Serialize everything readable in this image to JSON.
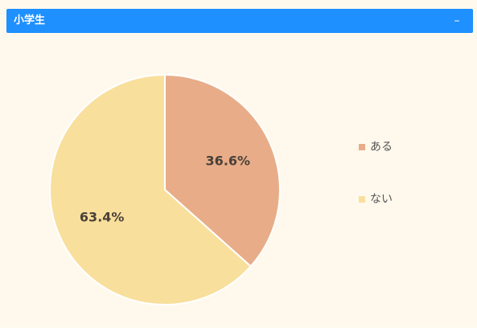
{
  "panel": {
    "title": "小学生",
    "collapse_label": "–"
  },
  "colors": {
    "header": "#1e90ff",
    "background": "#fff9ed",
    "aru": "#e8ad88",
    "nai": "#f8df9c",
    "label_text": "#4a4038",
    "legend_text": "#555555"
  },
  "chart_data": {
    "type": "pie",
    "title": "小学生",
    "legend_position": "right",
    "slices": [
      {
        "label": "ある",
        "value": 36.6,
        "value_label": "36.6%",
        "color": "#e8ad88"
      },
      {
        "label": "ない",
        "value": 63.4,
        "value_label": "63.4%",
        "color": "#f8df9c"
      }
    ]
  }
}
